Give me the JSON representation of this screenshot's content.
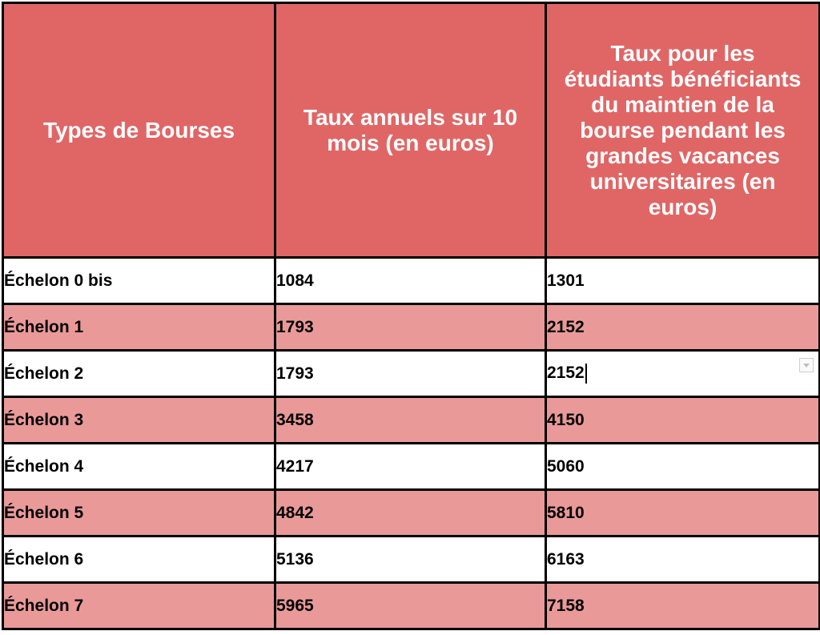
{
  "headers": [
    "Types de Bourses",
    "Taux annuels sur 10 mois (en euros)",
    "Taux pour les étudiants bénéficiants du maintien de la bourse pendant les grandes vacances universitaires (en euros)"
  ],
  "rows": [
    {
      "type": "Échelon 0 bis",
      "annual": "1084",
      "summer": "1301"
    },
    {
      "type": "Échelon 1",
      "annual": "1793",
      "summer": "2152"
    },
    {
      "type": "Échelon 2",
      "annual": "1793",
      "summer": "2152"
    },
    {
      "type": "Échelon 3",
      "annual": "3458",
      "summer": "4150"
    },
    {
      "type": "Échelon 4",
      "annual": "4217",
      "summer": "5060"
    },
    {
      "type": "Échelon 5",
      "annual": "4842",
      "summer": "5810"
    },
    {
      "type": "Échelon 6",
      "annual": "5136",
      "summer": "6163"
    },
    {
      "type": "Échelon 7",
      "annual": "5965",
      "summer": "7158"
    }
  ],
  "colors": {
    "header_bg": "#e06666",
    "header_text": "#ffffff",
    "alt_row_bg": "#ea9999",
    "row_bg": "#ffffff",
    "border": "#000000"
  },
  "icons": {
    "cell_dropdown": "chevron-down-icon",
    "text_cursor": "text-cursor"
  }
}
